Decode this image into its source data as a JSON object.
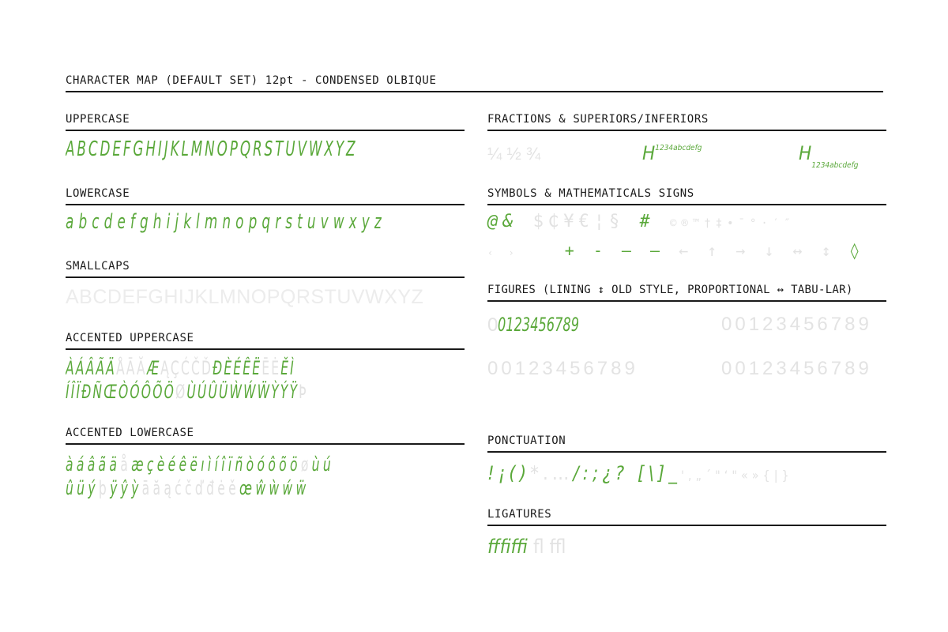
{
  "page": {
    "title": "CHARACTER MAP (DEFAULT SET) 12pt - CONDENSED OLBIQUE"
  },
  "colors": {
    "active": "#5aa83a",
    "inactive": "#e3e3e3",
    "rule": "#1a1a1a"
  },
  "left": {
    "uppercase": {
      "heading": "UPPERCASE",
      "glyphs": "ABCDEFGHIJKLMNOPQRSTUVWXYZ"
    },
    "lowercase": {
      "heading": "LOWERCASE",
      "glyphs": "abcdefghijklmnopqrstuvwxyz"
    },
    "smallcaps": {
      "heading": "SMALLCAPS",
      "glyphs": "ABCDEFGHIJKLMNOPQRSTUVWXYZ"
    },
    "accented_uppercase": {
      "heading": "ACCENTED UPPERCASE",
      "line1_on_a": "ÀÁÂÃÄ",
      "line1_off_a": "ÅĀĂ",
      "line1_on_b": "Æ",
      "line1_off_b": "ĄÇĆČĎ",
      "line1_on_c": "ĐÈÉÊË",
      "line1_off_c": "ĒĖ",
      "line1_on_d": "ĚÌ",
      "line2_on_a": "ÍÎÏÐÑŒÒÓÔÕÖ",
      "line2_off_a": "Ø",
      "line2_on_b": "ÙÚÛÜẀẂẄỲÝŸ",
      "line2_off_b": "Þ"
    },
    "accented_lowercase": {
      "heading": "ACCENTED LOWERCASE",
      "line1_on_a": "àáâãä",
      "line1_off_a": "å",
      "line1_on_b": "æçèéêëıìíîïñòóôõö",
      "line1_off_b": "ø",
      "line1_on_c": "ùú",
      "line2_on_a": "ûüý",
      "line2_off_a": "þ",
      "line2_on_b": "ÿŷỳ",
      "line2_off_b": "āăąćčďđėě",
      "line2_on_c": "œŵẁẃẅ"
    }
  },
  "right": {
    "fractions": {
      "heading": "FRACTIONS & SUPERIORS/INFERIORS",
      "fractions": "¼ ½ ¾",
      "sup_base": "H",
      "sup_text": "1234abcdefg",
      "inf_base": "H",
      "inf_text": "1234abcdefg"
    },
    "symbols": {
      "heading": "SYMBOLS & MATHEMATICALS SIGNS",
      "line1_on_a": "@&",
      "line1_off_a": "$₵¥€¦§",
      "line1_on_b": "#",
      "line1_off_b": "©®™†‡•¯°·′″",
      "line2_off_a": "‹ ›",
      "line2_on_a": "+ - – —",
      "line2_off_b": "← ↑ → ↓ ↔ ↕",
      "line2_on_b": "◊"
    },
    "figures": {
      "heading": "FIGURES (LINING ↕ OLD STYLE, PROPORTIONAL ↔ TABU-LAR)",
      "row1_zero": "0",
      "row1_green": "0123456789",
      "row1_grey": "00123456789",
      "row2_grey_left": "00123456789",
      "row2_grey_right": "00123456789"
    },
    "punctuation": {
      "heading": "PONCTUATION",
      "glyphs_on": "!¡()",
      "glyphs_off_a": "*.…",
      "glyphs_on_b": "/:;¿?",
      "glyphs_on_c": "[\\]_",
      "glyphs_off_b": "',„´\"‘\"«»{|}"
    },
    "ligatures": {
      "heading": "LIGATURES",
      "on": "ﬀﬁﬃ",
      "off": "ﬂ ﬄ"
    }
  }
}
